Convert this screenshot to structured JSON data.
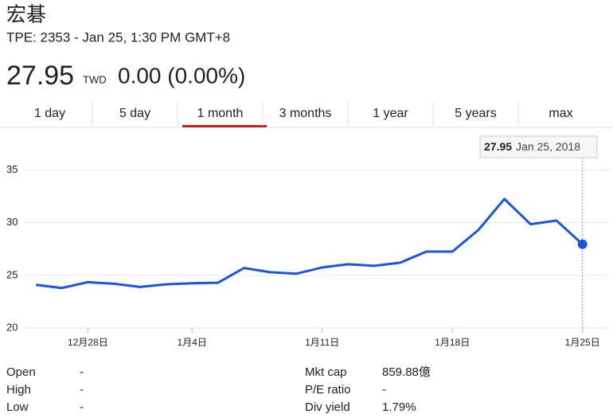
{
  "header": {
    "name": "宏碁",
    "subtitle": "TPE: 2353 - Jan 25, 1:30 PM GMT+8",
    "price": "27.95",
    "currency": "TWD",
    "change": "0.00 (0.00%)"
  },
  "tabs": {
    "items": [
      "1 day",
      "5 day",
      "1 month",
      "3 months",
      "1 year",
      "5 years",
      "max"
    ],
    "active": 2
  },
  "chart_data": {
    "type": "line",
    "categories": [
      null,
      null,
      "12月28日",
      null,
      null,
      null,
      "1月4日",
      null,
      null,
      null,
      null,
      "1月11日",
      null,
      null,
      null,
      null,
      "1月18日",
      null,
      null,
      null,
      null,
      "1月25日"
    ],
    "values": [
      24.1,
      23.8,
      24.35,
      24.2,
      23.9,
      24.15,
      24.25,
      24.3,
      25.7,
      25.3,
      25.15,
      25.75,
      26.05,
      25.9,
      26.2,
      27.25,
      27.25,
      29.3,
      32.25,
      29.85,
      30.2,
      27.95
    ],
    "color": "#1a56db",
    "ylim": [
      20,
      37
    ],
    "yticks": [
      20,
      25,
      30,
      35
    ],
    "grid": true,
    "tooltip": {
      "value": "27.95",
      "date": "Jan 25, 2018"
    }
  },
  "stats": {
    "left": [
      [
        "Open",
        "-"
      ],
      [
        "High",
        "-"
      ],
      [
        "Low",
        "-"
      ]
    ],
    "right": [
      [
        "Mkt cap",
        "859.88億"
      ],
      [
        "P/E ratio",
        "-"
      ],
      [
        "Div yield",
        "1.79%"
      ]
    ]
  }
}
